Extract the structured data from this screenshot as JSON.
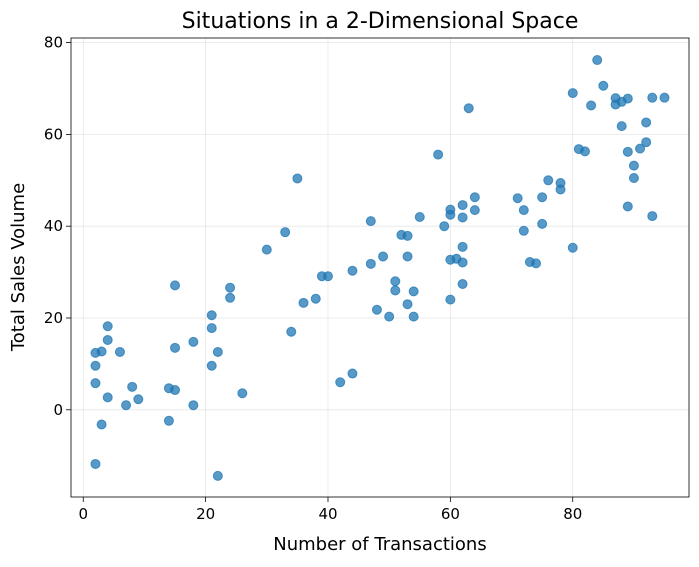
{
  "chart_data": {
    "type": "scatter",
    "title": "Situations in a 2-Dimensional Space",
    "xlabel": "Number of Transactions",
    "ylabel": "Total Sales Volume",
    "xlim": [
      -2,
      99
    ],
    "ylim": [
      -19,
      81
    ],
    "xticks": [
      0,
      20,
      40,
      60,
      80
    ],
    "yticks": [
      0,
      20,
      40,
      60,
      80
    ],
    "grid": true,
    "point_color": "#1f77b4",
    "point_opacity": 0.75,
    "points": [
      [
        2,
        -11.8
      ],
      [
        3,
        -3.2
      ],
      [
        2,
        5.8
      ],
      [
        2,
        9.6
      ],
      [
        2,
        12.4
      ],
      [
        3,
        12.7
      ],
      [
        4,
        18.2
      ],
      [
        4,
        15.2
      ],
      [
        4,
        2.7
      ],
      [
        6,
        12.6
      ],
      [
        7,
        1.0
      ],
      [
        8,
        5.0
      ],
      [
        9,
        2.3
      ],
      [
        14,
        -2.4
      ],
      [
        14,
        4.7
      ],
      [
        15,
        4.3
      ],
      [
        15,
        13.5
      ],
      [
        15,
        27.1
      ],
      [
        18,
        1.0
      ],
      [
        18,
        14.8
      ],
      [
        21,
        20.6
      ],
      [
        21,
        17.8
      ],
      [
        21,
        9.6
      ],
      [
        22,
        12.6
      ],
      [
        22,
        -14.4
      ],
      [
        24,
        26.6
      ],
      [
        24,
        24.4
      ],
      [
        26,
        3.6
      ],
      [
        30,
        34.9
      ],
      [
        33,
        38.7
      ],
      [
        34,
        17.0
      ],
      [
        35,
        50.4
      ],
      [
        36,
        23.3
      ],
      [
        38,
        24.2
      ],
      [
        39,
        29.1
      ],
      [
        40,
        29.1
      ],
      [
        42,
        6.0
      ],
      [
        44,
        7.9
      ],
      [
        44,
        30.3
      ],
      [
        47,
        41.1
      ],
      [
        47,
        31.8
      ],
      [
        48,
        21.8
      ],
      [
        49,
        33.4
      ],
      [
        50,
        20.3
      ],
      [
        51,
        28.0
      ],
      [
        51,
        26.0
      ],
      [
        52,
        38.1
      ],
      [
        53,
        37.9
      ],
      [
        53,
        33.4
      ],
      [
        53,
        23.0
      ],
      [
        54,
        25.8
      ],
      [
        54,
        20.3
      ],
      [
        55,
        42.0
      ],
      [
        58,
        55.6
      ],
      [
        59,
        40.0
      ],
      [
        60,
        43.6
      ],
      [
        60,
        42.5
      ],
      [
        60,
        32.7
      ],
      [
        60,
        24.0
      ],
      [
        61,
        32.9
      ],
      [
        62,
        44.6
      ],
      [
        62,
        41.9
      ],
      [
        62,
        35.5
      ],
      [
        62,
        32.1
      ],
      [
        62,
        27.4
      ],
      [
        63,
        65.7
      ],
      [
        64,
        46.3
      ],
      [
        64,
        43.5
      ],
      [
        71,
        46.1
      ],
      [
        72,
        43.5
      ],
      [
        72,
        39.0
      ],
      [
        73,
        32.2
      ],
      [
        74,
        31.9
      ],
      [
        75,
        46.3
      ],
      [
        75,
        40.5
      ],
      [
        76,
        50.0
      ],
      [
        78,
        49.4
      ],
      [
        78,
        48.0
      ],
      [
        80,
        69.0
      ],
      [
        80,
        35.3
      ],
      [
        81,
        56.8
      ],
      [
        82,
        56.3
      ],
      [
        83,
        66.3
      ],
      [
        84,
        76.2
      ],
      [
        85,
        70.6
      ],
      [
        87,
        67.9
      ],
      [
        87,
        66.5
      ],
      [
        88,
        67.1
      ],
      [
        88,
        61.8
      ],
      [
        89,
        67.8
      ],
      [
        89,
        56.2
      ],
      [
        89,
        44.3
      ],
      [
        90,
        53.2
      ],
      [
        90,
        50.5
      ],
      [
        91,
        56.9
      ],
      [
        92,
        62.6
      ],
      [
        92,
        58.3
      ],
      [
        93,
        68.0
      ],
      [
        93,
        42.2
      ],
      [
        95,
        68.0
      ]
    ]
  }
}
